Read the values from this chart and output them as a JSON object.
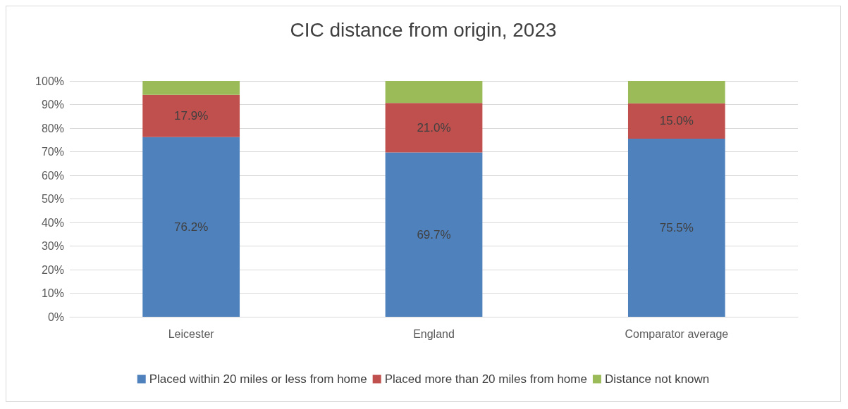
{
  "chart_data": {
    "type": "bar",
    "title": "CIC distance from origin, 2023",
    "stacked": true,
    "categories": [
      "Leicester",
      "England",
      "Comparator average"
    ],
    "series": [
      {
        "name": "Placed within 20 miles or less from home",
        "color": "#4f81bd",
        "values": [
          76.2,
          69.7,
          75.5
        ],
        "value_labels": [
          "76.2%",
          "69.7%",
          "75.5%"
        ]
      },
      {
        "name": "Placed more than 20 miles from home",
        "color": "#c0504d",
        "values": [
          17.9,
          21.0,
          15.0
        ],
        "value_labels": [
          "17.9%",
          "21.0%",
          "15.0%"
        ]
      },
      {
        "name": "Distance not known",
        "color": "#9bbb59",
        "values": [
          5.9,
          9.3,
          9.5
        ]
      }
    ],
    "ylim": [
      0,
      100
    ],
    "yticks": [
      {
        "value": 0,
        "label": "0%"
      },
      {
        "value": 10,
        "label": "10%"
      },
      {
        "value": 20,
        "label": "20%"
      },
      {
        "value": 30,
        "label": "30%"
      },
      {
        "value": 40,
        "label": "40%"
      },
      {
        "value": 50,
        "label": "50%"
      },
      {
        "value": 60,
        "label": "60%"
      },
      {
        "value": 70,
        "label": "70%"
      },
      {
        "value": 80,
        "label": "80%"
      },
      {
        "value": 90,
        "label": "90%"
      },
      {
        "value": 100,
        "label": "100%"
      }
    ],
    "grid": "y",
    "legend": "bottom"
  }
}
